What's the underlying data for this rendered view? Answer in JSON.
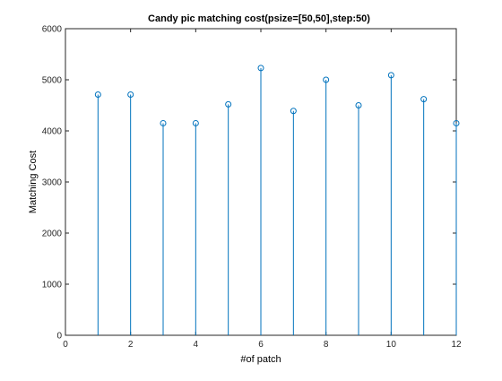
{
  "chart_data": {
    "type": "stem",
    "title": "Candy pic matching cost(psize=[50,50],step:50)",
    "xlabel": "#of patch",
    "ylabel": "Matching Cost",
    "xlim": [
      0,
      12
    ],
    "ylim": [
      0,
      6000
    ],
    "xticks": [
      0,
      2,
      4,
      6,
      8,
      10,
      12
    ],
    "yticks": [
      0,
      1000,
      2000,
      3000,
      4000,
      5000,
      6000
    ],
    "grid": false,
    "legend": "none",
    "series": [
      {
        "x": [
          1,
          2,
          3,
          4,
          5,
          6,
          7,
          8,
          9,
          10,
          11,
          12
        ],
        "values": [
          4710,
          4710,
          4150,
          4150,
          4520,
          5230,
          4390,
          5000,
          4500,
          5090,
          4620,
          4150
        ],
        "color": "#0072bd",
        "marker": "circle"
      }
    ]
  }
}
